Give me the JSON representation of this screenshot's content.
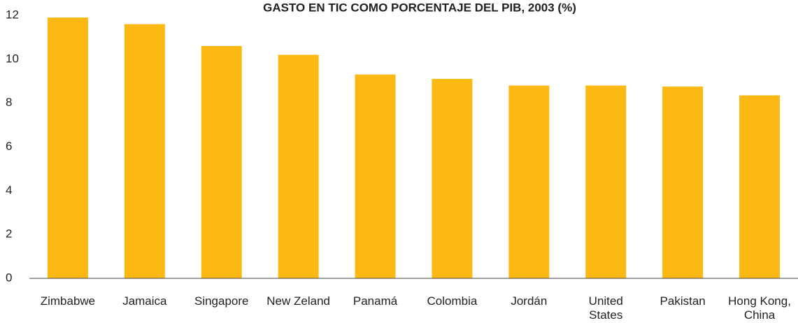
{
  "chart_data": {
    "type": "bar",
    "title": "GASTO EN TIC COMO PORCENTAJE DEL PIB, 2003 (%)",
    "categories": [
      "Zimbabwe",
      "Jamaica",
      "Singapore",
      "New Zeland",
      "Panamá",
      "Colombia",
      "Jordán",
      "United\nStates",
      "Pakistan",
      "Hong Kong,\nChina"
    ],
    "values": [
      11.9,
      11.6,
      10.6,
      10.2,
      9.3,
      9.1,
      8.8,
      8.8,
      8.75,
      8.35
    ],
    "color": "#fdb913",
    "ylim": [
      0,
      12
    ],
    "yticks": [
      0,
      2,
      4,
      6,
      8,
      10,
      12
    ],
    "grid": false
  }
}
